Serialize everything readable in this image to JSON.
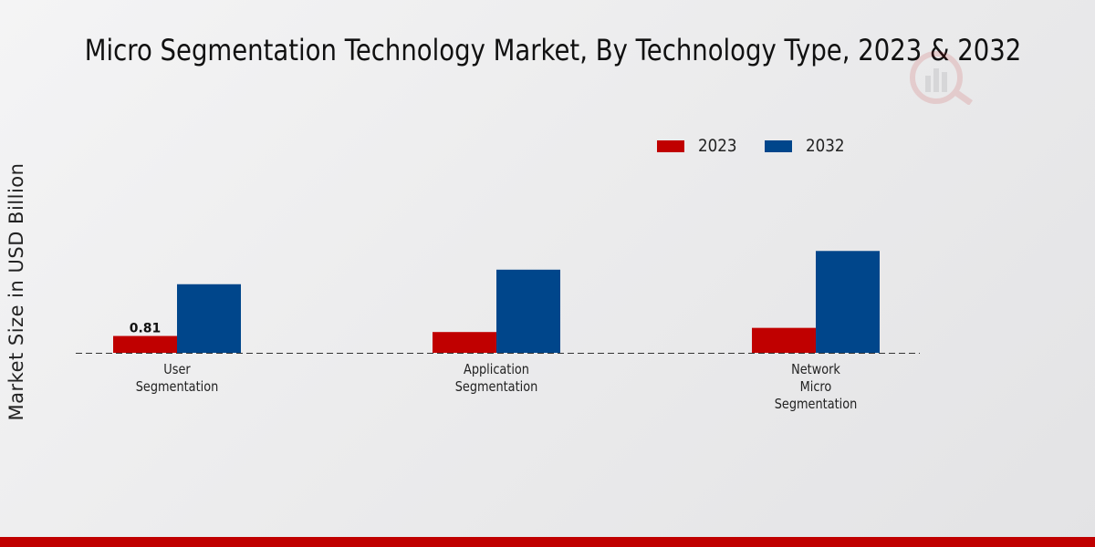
{
  "title": "Micro Segmentation Technology Market, By Technology Type, 2023 & 2032",
  "colors": {
    "series_2023": "#c00000",
    "series_2032": "#00468b",
    "band": "#c00000"
  },
  "chart_data": {
    "type": "bar",
    "title": "Micro Segmentation Technology Market, By Technology Type, 2023 & 2032",
    "xlabel": "",
    "ylabel": "Market Size in USD Billion",
    "categories": [
      [
        "User",
        "Segmentation"
      ],
      [
        "Application",
        "Segmentation"
      ],
      [
        "Network",
        "Micro",
        "Segmentation"
      ]
    ],
    "series": [
      {
        "name": "2023",
        "values": [
          0.81,
          1.0,
          1.2
        ]
      },
      {
        "name": "2032",
        "values": [
          3.3,
          4.0,
          4.9
        ]
      }
    ],
    "ylim": [
      0,
      10
    ],
    "data_labels": [
      {
        "series": 0,
        "index": 0,
        "text": "0.81"
      }
    ],
    "grid": false,
    "legend": "top-right"
  }
}
